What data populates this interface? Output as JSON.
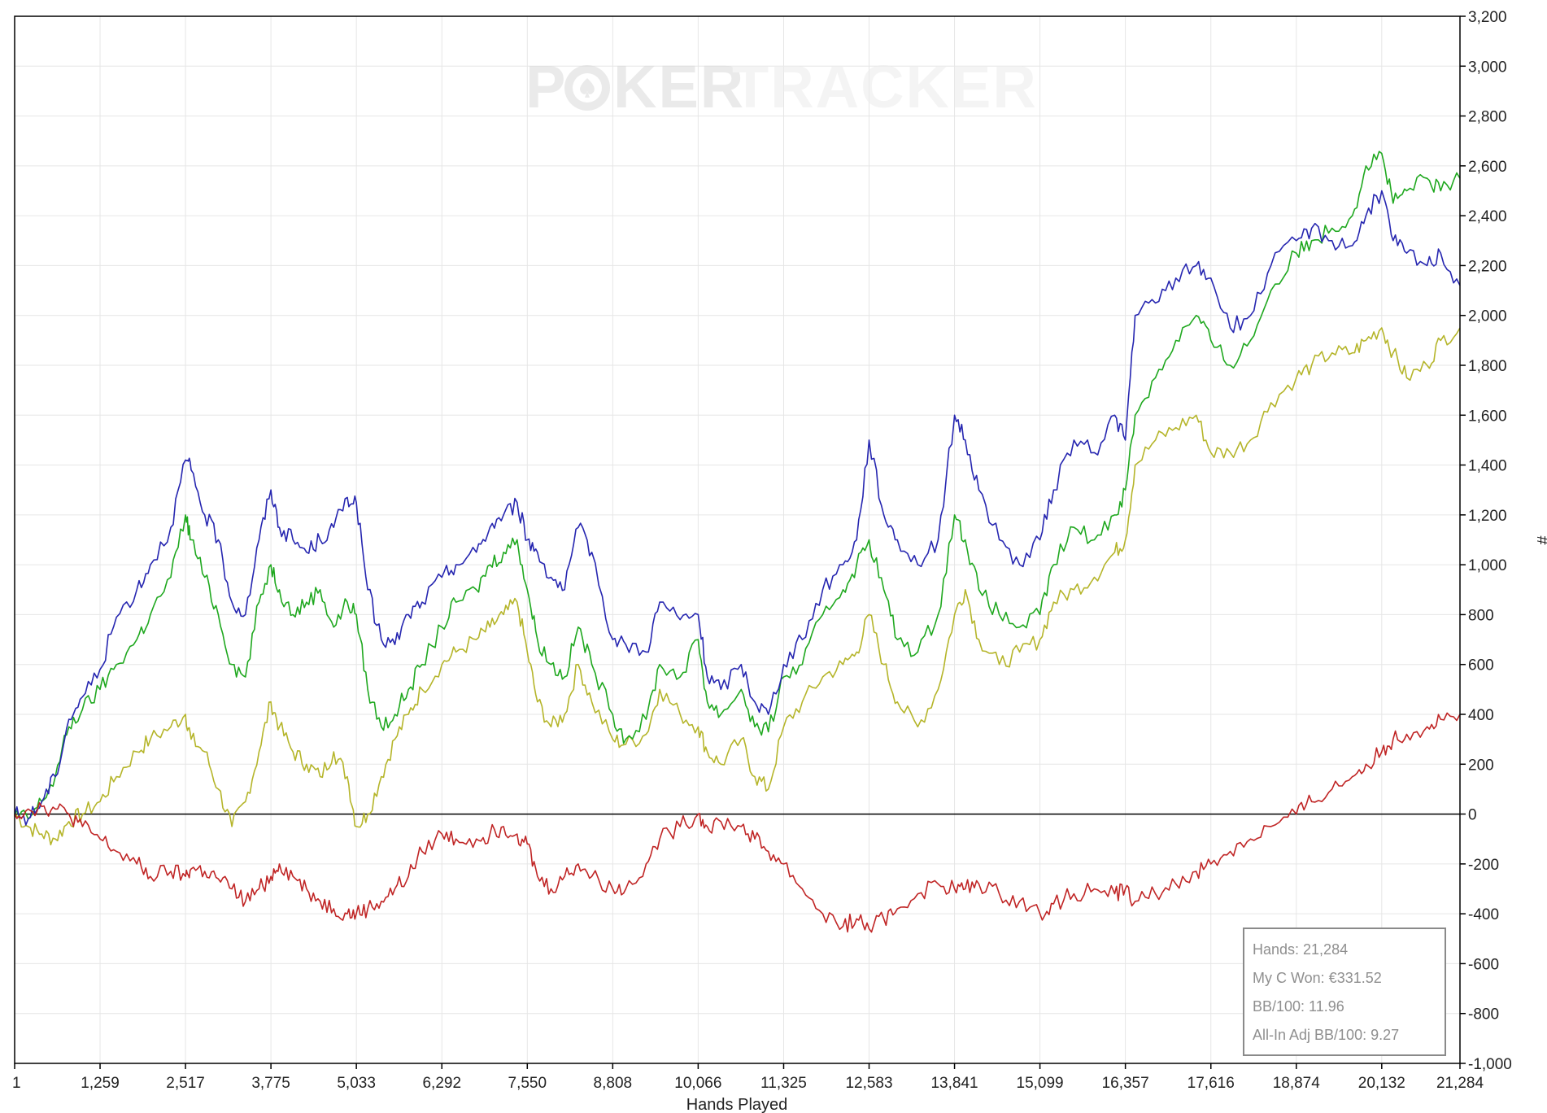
{
  "watermark": {
    "part1": "P",
    "part2": "KER",
    "part3": "TRACKER"
  },
  "summary": {
    "hands": "Hands: 21,284",
    "won": "My C Won: €331.52",
    "bb100": "BB/100: 11.96",
    "allin": "All-In Adj BB/100: 9.27"
  },
  "chart_data": {
    "type": "line",
    "xlabel": "Hands Played",
    "ylabel": "#",
    "xlim": [
      1,
      21284
    ],
    "ylim": [
      -1000,
      3200
    ],
    "x_ticks": [
      "1",
      "1,259",
      "2,517",
      "3,775",
      "5,033",
      "6,292",
      "7,550",
      "8,808",
      "10,066",
      "11,325",
      "12,583",
      "13,841",
      "15,099",
      "16,357",
      "17,616",
      "18,874",
      "20,132",
      "21,284"
    ],
    "y_ticks": [
      "3,200",
      "3,000",
      "2,800",
      "2,600",
      "2,400",
      "2,200",
      "2,000",
      "1,800",
      "1,600",
      "1,400",
      "1,200",
      "1,000",
      "800",
      "600",
      "400",
      "200",
      "0",
      "-200",
      "-400",
      "-600",
      "-800",
      "-1,000"
    ],
    "grid": true,
    "colors": {
      "blue": "#2626b0",
      "green": "#1fa81f",
      "olive": "#b5b52a",
      "red": "#c02525",
      "zero_line": "#000000",
      "grid": "#e6e6e6"
    },
    "x": [
      1,
      200,
      400,
      600,
      800,
      1000,
      1259,
      1500,
      1800,
      2000,
      2300,
      2517,
      2600,
      2800,
      3000,
      3200,
      3400,
      3600,
      3775,
      3900,
      4100,
      4300,
      4500,
      4700,
      4900,
      5033,
      5200,
      5400,
      5600,
      5800,
      6000,
      6292,
      6500,
      6800,
      7000,
      7200,
      7400,
      7550,
      7700,
      7900,
      8100,
      8300,
      8500,
      8808,
      9000,
      9300,
      9500,
      9800,
      10066,
      10200,
      10400,
      10700,
      10900,
      11100,
      11325,
      11600,
      11900,
      12200,
      12400,
      12583,
      12800,
      13000,
      13300,
      13600,
      13841,
      14000,
      14200,
      14500,
      14800,
      15099,
      15300,
      15600,
      15900,
      16200,
      16357,
      16500,
      16800,
      17100,
      17400,
      17616,
      17900,
      18200,
      18500,
      18874,
      19100,
      19400,
      19700,
      19900,
      20132,
      20300,
      20500,
      20800,
      21000,
      21284
    ],
    "series": [
      {
        "color": "blue",
        "values": [
          0,
          -20,
          50,
          150,
          380,
          470,
          580,
          790,
          900,
          1000,
          1150,
          1420,
          1380,
          1200,
          1100,
          850,
          800,
          1100,
          1300,
          1150,
          1100,
          1050,
          1100,
          1150,
          1270,
          1250,
          900,
          700,
          680,
          800,
          850,
          950,
          1000,
          1050,
          1150,
          1200,
          1250,
          1100,
          1050,
          950,
          900,
          1150,
          1050,
          700,
          680,
          650,
          850,
          780,
          800,
          550,
          500,
          600,
          450,
          400,
          600,
          700,
          900,
          1000,
          1100,
          1500,
          1200,
          1100,
          1000,
          1100,
          1600,
          1500,
          1300,
          1100,
          1000,
          1100,
          1300,
          1500,
          1450,
          1600,
          1500,
          2000,
          2050,
          2150,
          2200,
          2150,
          1950,
          2000,
          2200,
          2300,
          2350,
          2300,
          2280,
          2400,
          2500,
          2300,
          2250,
          2200,
          2250,
          2120
        ]
      },
      {
        "color": "green",
        "values": [
          0,
          -20,
          50,
          150,
          350,
          420,
          500,
          600,
          700,
          800,
          950,
          1200,
          1100,
          950,
          800,
          600,
          550,
          850,
          1000,
          900,
          800,
          850,
          900,
          750,
          850,
          800,
          500,
          350,
          400,
          500,
          600,
          750,
          850,
          900,
          1000,
          1050,
          1100,
          900,
          700,
          600,
          550,
          750,
          600,
          400,
          300,
          380,
          600,
          550,
          700,
          450,
          400,
          500,
          350,
          330,
          550,
          600,
          800,
          900,
          1000,
          1100,
          900,
          700,
          650,
          800,
          1200,
          1100,
          900,
          800,
          750,
          800,
          1000,
          1150,
          1100,
          1200,
          1300,
          1600,
          1750,
          1900,
          2000,
          1900,
          1800,
          1900,
          2100,
          2250,
          2300,
          2350,
          2400,
          2600,
          2650,
          2450,
          2500,
          2550,
          2500,
          2550
        ]
      },
      {
        "color": "olive",
        "values": [
          0,
          -50,
          -80,
          -100,
          -30,
          0,
          50,
          150,
          250,
          300,
          350,
          400,
          300,
          250,
          100,
          -50,
          50,
          250,
          450,
          350,
          250,
          200,
          150,
          250,
          150,
          -50,
          0,
          150,
          300,
          400,
          500,
          600,
          650,
          700,
          750,
          800,
          850,
          650,
          450,
          350,
          400,
          600,
          450,
          300,
          280,
          320,
          500,
          400,
          350,
          250,
          200,
          300,
          150,
          100,
          350,
          450,
          550,
          600,
          650,
          800,
          600,
          450,
          350,
          500,
          800,
          900,
          700,
          600,
          650,
          700,
          850,
          900,
          950,
          1050,
          1100,
          1400,
          1500,
          1550,
          1600,
          1450,
          1450,
          1500,
          1650,
          1750,
          1800,
          1850,
          1850,
          1900,
          1950,
          1850,
          1750,
          1800,
          1900,
          1950
        ]
      },
      {
        "color": "red",
        "values": [
          0,
          20,
          30,
          20,
          0,
          -50,
          -100,
          -150,
          -200,
          -250,
          -230,
          -250,
          -220,
          -230,
          -260,
          -300,
          -350,
          -300,
          -250,
          -200,
          -250,
          -300,
          -350,
          -380,
          -400,
          -400,
          -380,
          -350,
          -300,
          -250,
          -150,
          -80,
          -100,
          -100,
          -80,
          -50,
          -80,
          -120,
          -250,
          -300,
          -250,
          -200,
          -250,
          -300,
          -300,
          -200,
          -100,
          -50,
          0,
          -50,
          -30,
          -50,
          -100,
          -150,
          -200,
          -300,
          -400,
          -450,
          -420,
          -460,
          -420,
          -380,
          -320,
          -280,
          -300,
          -300,
          -280,
          -320,
          -350,
          -400,
          -360,
          -320,
          -300,
          -320,
          -300,
          -350,
          -320,
          -280,
          -230,
          -200,
          -150,
          -100,
          -50,
          0,
          50,
          100,
          150,
          200,
          250,
          300,
          320,
          350,
          380,
          400
        ]
      }
    ]
  }
}
